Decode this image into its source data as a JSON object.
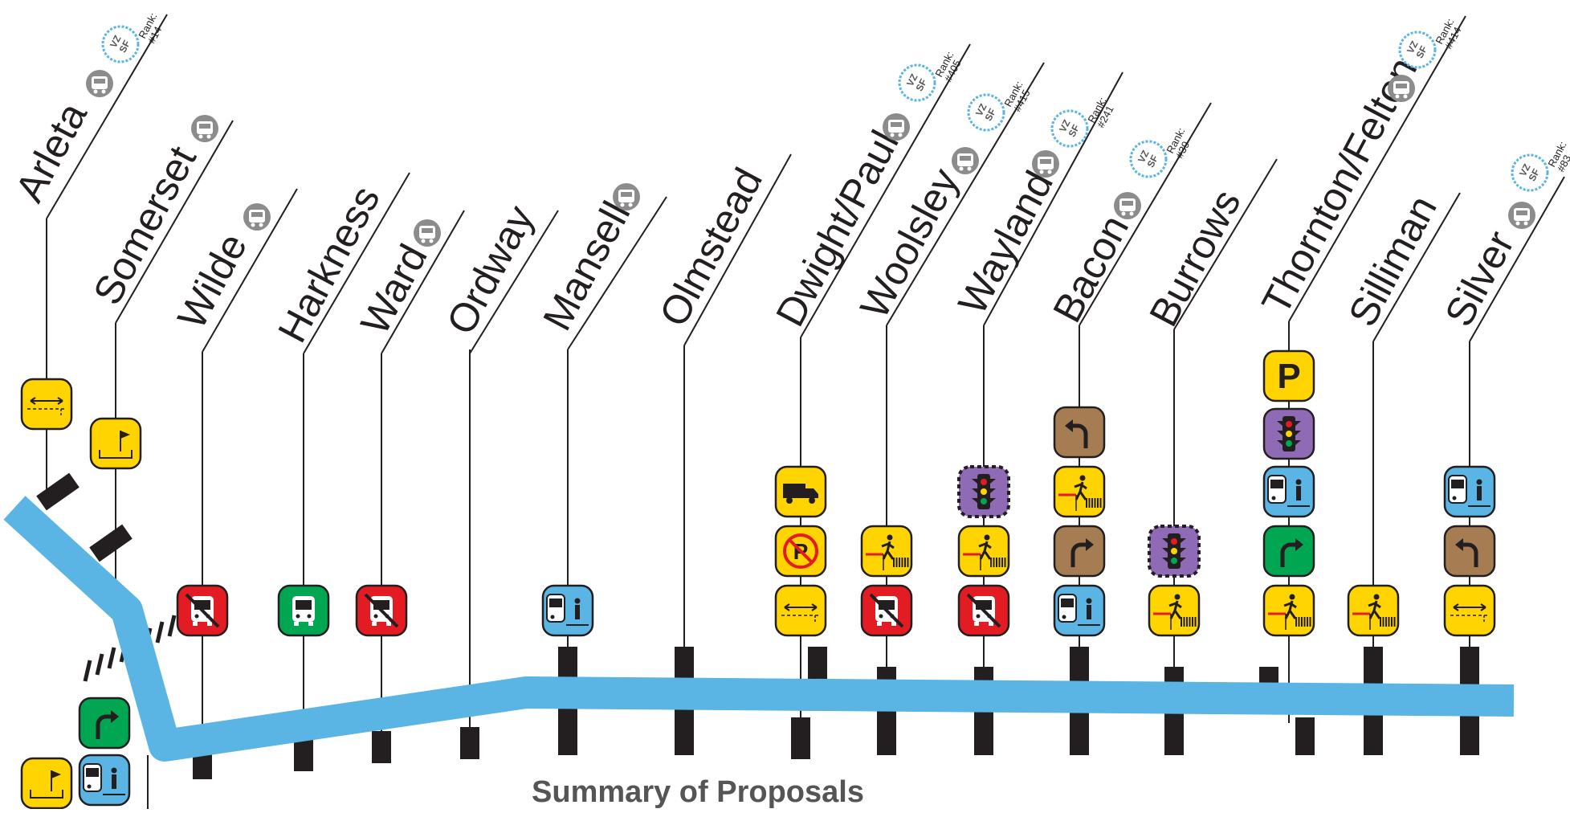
{
  "diagram": {
    "title": "Summary of Proposals",
    "badge": {
      "rank_prefix": "Rank:",
      "logo_vz": "VZ",
      "logo_sf": "SF"
    },
    "colors": {
      "route": "#5ab4e4",
      "crossbar": "#231f20",
      "yellow": "#ffd400",
      "red": "#e31b23",
      "green": "#00a651",
      "blue": "#5ab4e4",
      "brown": "#a67c52",
      "purple": "#8e6bb4",
      "gray": "#8c8c8c",
      "vz_blue": "#5ab4e4"
    },
    "streets": [
      {
        "name": "Arleta",
        "rank": "#14",
        "has_stop": true,
        "proposals": [
          {
            "color": "yellow",
            "icon": "lane-width-icon"
          },
          {
            "color": "yellow",
            "icon": "flag-icon"
          }
        ]
      },
      {
        "name": "Somerset",
        "rank": "",
        "has_stop": true,
        "proposals": [
          {
            "color": "yellow",
            "icon": "flag-icon"
          },
          {
            "color": "green",
            "icon": "turn-right-icon"
          },
          {
            "color": "blue",
            "icon": "bus-boarding-icon"
          }
        ]
      },
      {
        "name": "Wilde",
        "rank": "",
        "has_stop": true,
        "proposals": [
          {
            "color": "red",
            "icon": "no-bus-icon"
          }
        ]
      },
      {
        "name": "Harkness",
        "rank": "",
        "has_stop": false,
        "proposals": [
          {
            "color": "green",
            "icon": "bus-icon"
          }
        ]
      },
      {
        "name": "Ward",
        "rank": "",
        "has_stop": true,
        "proposals": [
          {
            "color": "red",
            "icon": "no-bus-icon"
          }
        ]
      },
      {
        "name": "Ordway",
        "rank": "",
        "has_stop": false,
        "proposals": []
      },
      {
        "name": "Mansell",
        "rank": "",
        "has_stop": true,
        "proposals": [
          {
            "color": "blue",
            "icon": "bus-boarding-icon"
          }
        ]
      },
      {
        "name": "Olmstead",
        "rank": "",
        "has_stop": false,
        "proposals": []
      },
      {
        "name": "Dwight/Paul",
        "rank": "#405",
        "has_stop": true,
        "proposals": [
          {
            "color": "yellow",
            "icon": "truck-icon"
          },
          {
            "color": "yellow",
            "icon": "no-parking-icon"
          },
          {
            "color": "yellow",
            "icon": "lane-width-icon"
          }
        ]
      },
      {
        "name": "Woolsley",
        "rank": "#415",
        "has_stop": true,
        "proposals": [
          {
            "color": "yellow",
            "icon": "pedestrian-crossing-icon"
          },
          {
            "color": "red",
            "icon": "no-bus-icon"
          }
        ]
      },
      {
        "name": "Wayland",
        "rank": "#241",
        "has_stop": true,
        "proposals": [
          {
            "color": "purple",
            "icon": "traffic-signal-icon",
            "dashed": true
          },
          {
            "color": "yellow",
            "icon": "pedestrian-crossing-icon"
          },
          {
            "color": "red",
            "icon": "no-bus-icon"
          }
        ]
      },
      {
        "name": "Bacon",
        "rank": "",
        "has_stop": true,
        "proposals": [
          {
            "color": "brown",
            "icon": "turn-left-icon"
          },
          {
            "color": "yellow",
            "icon": "pedestrian-crossing-icon"
          },
          {
            "color": "brown",
            "icon": "turn-right-icon"
          },
          {
            "color": "blue",
            "icon": "bus-boarding-icon"
          }
        ]
      },
      {
        "name": "Burrows",
        "rank": "#39",
        "has_stop": false,
        "proposals": [
          {
            "color": "purple",
            "icon": "traffic-signal-icon",
            "dashed": true
          },
          {
            "color": "yellow",
            "icon": "pedestrian-crossing-icon"
          }
        ]
      },
      {
        "name": "Thornton/Felton",
        "rank": "#414",
        "has_stop": true,
        "proposals": [
          {
            "color": "yellow",
            "icon": "parking-icon"
          },
          {
            "color": "purple",
            "icon": "traffic-signal-icon"
          },
          {
            "color": "blue",
            "icon": "bus-boarding-icon"
          },
          {
            "color": "green",
            "icon": "turn-right-icon"
          },
          {
            "color": "yellow",
            "icon": "pedestrian-crossing-icon"
          }
        ]
      },
      {
        "name": "Silliman",
        "rank": "",
        "has_stop": false,
        "proposals": [
          {
            "color": "yellow",
            "icon": "pedestrian-crossing-icon"
          }
        ]
      },
      {
        "name": "Silver",
        "rank": "#83",
        "has_stop": true,
        "proposals": [
          {
            "color": "blue",
            "icon": "bus-boarding-icon"
          },
          {
            "color": "brown",
            "icon": "turn-left-icon"
          },
          {
            "color": "yellow",
            "icon": "lane-width-icon"
          }
        ]
      }
    ]
  }
}
